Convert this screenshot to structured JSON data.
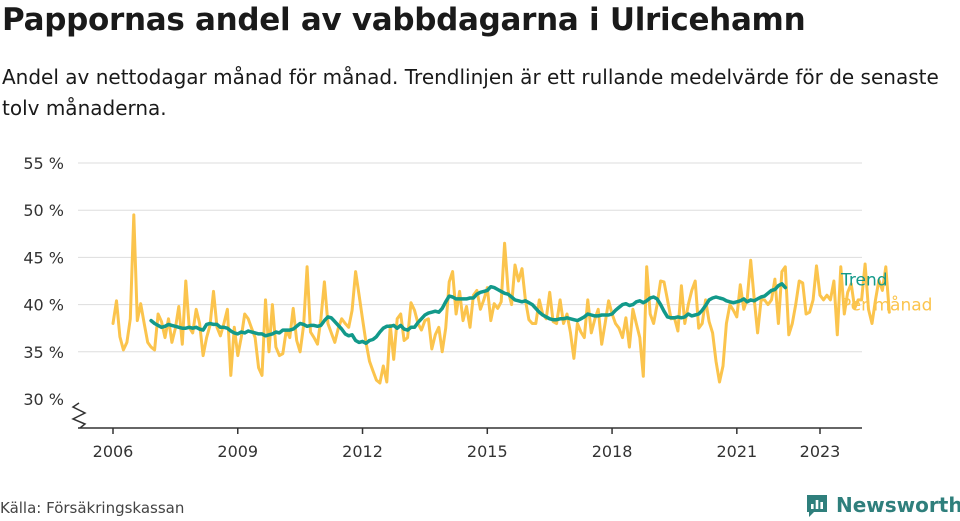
{
  "header": {
    "title": "Pappornas andel av vabbdagarna i Ulricehamn",
    "subtitle": "Andel av nettodagar månad för månad. Trendlinjen är ett rullande medelvärde för de senaste tolv månaderna."
  },
  "footer": {
    "source": "Källa: Försäkringskassan",
    "brand": "Newsworthy"
  },
  "colors": {
    "monthly": "#fbc44d",
    "trend": "#12998a",
    "grid": "#dddddd",
    "brand": "#2f7f7c"
  },
  "chart_data": {
    "type": "line",
    "ylim": [
      30,
      55
    ],
    "y_ticks": [
      30,
      35,
      40,
      45,
      50,
      55
    ],
    "y_tick_labels": [
      "30 %",
      "35 %",
      "40 %",
      "45 %",
      "50 %",
      "55 %"
    ],
    "x_ticks": [
      2006,
      2009,
      2012,
      2015,
      2018,
      2021,
      2023
    ],
    "x_tick_labels": [
      "2006",
      "2009",
      "2012",
      "2015",
      "2018",
      "2021",
      "2023"
    ],
    "xlim": [
      2005.6,
      2024.2
    ],
    "grid": true,
    "axis_break": true,
    "legend": "inline-right",
    "series": [
      {
        "name": "Trend",
        "key": "trend",
        "start": "2006-12",
        "values": [
          38.3,
          38.0,
          37.8,
          37.6,
          37.7,
          37.9,
          37.8,
          37.7,
          37.6,
          37.5,
          37.5,
          37.6,
          37.5,
          37.6,
          37.4,
          37.3,
          37.9,
          38.0,
          37.9,
          37.9,
          37.6,
          37.6,
          37.5,
          37.2,
          37.0,
          36.9,
          37.1,
          37.0,
          37.2,
          37.1,
          37.0,
          36.9,
          36.9,
          36.7,
          36.8,
          36.9,
          37.1,
          37.0,
          37.3,
          37.3,
          37.3,
          37.4,
          37.7,
          38.0,
          37.9,
          37.7,
          37.8,
          37.8,
          37.7,
          37.8,
          38.3,
          38.7,
          38.6,
          38.2,
          37.8,
          37.4,
          36.9,
          36.7,
          36.8,
          36.2,
          36.0,
          36.1,
          35.9,
          36.2,
          36.3,
          36.6,
          37.1,
          37.5,
          37.7,
          37.7,
          37.8,
          37.5,
          37.8,
          37.4,
          37.3,
          37.6,
          37.6,
          38.1,
          38.5,
          38.9,
          39.1,
          39.2,
          39.3,
          39.2,
          39.6,
          40.3,
          40.9,
          40.8,
          40.6,
          40.6,
          40.6,
          40.6,
          40.7,
          40.7,
          41.1,
          41.3,
          41.4,
          41.5,
          41.9,
          41.8,
          41.6,
          41.4,
          41.2,
          41.1,
          40.8,
          40.5,
          40.4,
          40.3,
          40.4,
          40.2,
          40.0,
          39.6,
          39.2,
          38.9,
          38.7,
          38.5,
          38.4,
          38.4,
          38.5,
          38.5,
          38.6,
          38.5,
          38.4,
          38.3,
          38.5,
          38.7,
          39.0,
          38.9,
          38.8,
          38.8,
          38.9,
          38.9,
          38.9,
          39.0,
          39.4,
          39.7,
          40.0,
          40.1,
          39.9,
          40.0,
          40.3,
          40.4,
          40.2,
          40.4,
          40.7,
          40.8,
          40.6,
          40.0,
          39.3,
          38.7,
          38.6,
          38.6,
          38.7,
          38.6,
          38.7,
          39.0,
          38.8,
          38.9,
          39.0,
          39.4,
          39.9,
          40.5,
          40.7,
          40.8,
          40.7,
          40.6,
          40.4,
          40.3,
          40.2,
          40.3,
          40.4,
          40.6,
          40.3,
          40.5,
          40.4,
          40.6,
          40.8,
          40.9,
          41.2,
          41.5,
          41.6,
          42.0,
          42.2,
          41.8
        ]
      },
      {
        "name": "Per månad",
        "key": "monthly",
        "start": "2006-01",
        "values": [
          38.0,
          40.4,
          36.6,
          35.2,
          36.0,
          38.5,
          49.5,
          38.3,
          40.1,
          38.0,
          36.0,
          35.5,
          35.2,
          39.0,
          38.2,
          36.5,
          38.5,
          36.0,
          37.5,
          39.8,
          35.8,
          42.5,
          37.6,
          37.0,
          39.5,
          38.0,
          34.6,
          36.5,
          37.8,
          41.4,
          37.6,
          36.7,
          38.0,
          39.5,
          32.5,
          37.6,
          34.6,
          36.5,
          39.0,
          38.5,
          37.5,
          36.5,
          33.3,
          32.5,
          40.5,
          35.0,
          40.0,
          35.5,
          34.6,
          34.8,
          37.3,
          36.5,
          39.6,
          36.2,
          35.0,
          37.8,
          44.0,
          37.1,
          36.5,
          35.8,
          38.5,
          42.4,
          38.0,
          37.0,
          36.0,
          37.5,
          38.5,
          38.0,
          37.6,
          39.4,
          43.5,
          41.0,
          38.5,
          36.0,
          34.0,
          33.0,
          32.0,
          31.7,
          33.5,
          31.8,
          37.8,
          34.2,
          38.5,
          39.0,
          36.2,
          36.5,
          40.2,
          39.4,
          38.0,
          37.3,
          38.3,
          38.5,
          35.3,
          36.8,
          37.6,
          35.0,
          37.5,
          42.4,
          43.5,
          39.0,
          41.4,
          38.3,
          39.8,
          37.6,
          41.0,
          41.5,
          39.5,
          40.5,
          41.8,
          38.3,
          40.1,
          39.6,
          40.3,
          46.5,
          41.5,
          40.0,
          44.2,
          42.5,
          43.8,
          40.5,
          38.4,
          38.0,
          38.0,
          40.5,
          39.0,
          38.5,
          41.3,
          38.2,
          38.0,
          40.5,
          38.0,
          39.0,
          37.0,
          34.3,
          38.0,
          37.1,
          36.5,
          40.5,
          37.0,
          38.4,
          39.5,
          35.8,
          38.0,
          40.4,
          39.0,
          38.0,
          37.5,
          36.5,
          38.6,
          35.5,
          39.5,
          38.0,
          36.5,
          32.4,
          44.0,
          39.0,
          38.0,
          40.0,
          42.5,
          42.4,
          40.5,
          38.5,
          38.6,
          37.2,
          42.0,
          38.0,
          40.0,
          41.5,
          42.5,
          37.5,
          38.0,
          40.5,
          38.2,
          37.0,
          34.0,
          31.8,
          33.5,
          38.0,
          40.0,
          39.4,
          38.7,
          42.1,
          39.5,
          40.6,
          44.7,
          40.6,
          37.0,
          40.5,
          40.5,
          40.0,
          40.5,
          42.7,
          38.0,
          43.5,
          44.0,
          36.8,
          38.0,
          40.0,
          42.5,
          42.3,
          39.0,
          39.2,
          40.5,
          44.1,
          41.0,
          40.5,
          41.0,
          40.5,
          42.5,
          36.8,
          44.0,
          39.0,
          41.3,
          42.2,
          39.6,
          40.5,
          40.5,
          44.3,
          39.5,
          38.0,
          40.5,
          42.6,
          41.5,
          44.0,
          39.2
        ]
      }
    ]
  }
}
